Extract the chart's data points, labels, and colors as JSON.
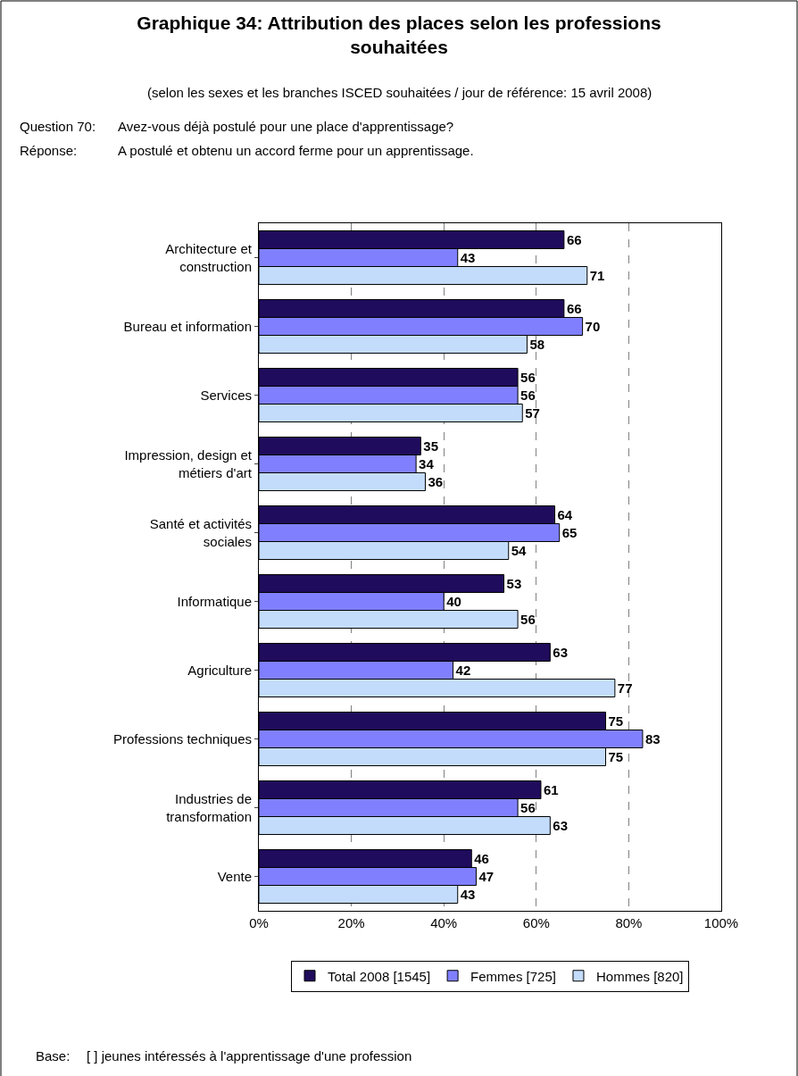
{
  "chart_data": {
    "type": "bar",
    "orientation": "horizontal",
    "title": "Graphique 34: Attribution des places selon les professions souhaitées",
    "subtitle": "(selon les sexes et les branches ISCED souhaitées / jour de référence: 15 avril 2008)",
    "annotations": [
      "Question 70:",
      "Avez-vous déjà postulé pour une place d'apprentissage?",
      "Réponse:",
      "A postulé et obtenu un accord ferme pour un apprentissage.",
      "Base:",
      "[ ] jeunes intéressés à l'apprentissage d'une profession"
    ],
    "categories": [
      "Architecture et construction",
      "Bureau et information",
      "Services",
      "Impression, design et métiers d'art",
      "Santé et activités sociales",
      "Informatique",
      "Agriculture",
      "Professions techniques",
      "Industries de transformation",
      "Vente"
    ],
    "series": [
      {
        "name": "Total 2008 [1545]",
        "color": "#200c5c",
        "values": [
          66,
          66,
          56,
          35,
          64,
          53,
          63,
          75,
          61,
          46
        ]
      },
      {
        "name": "Femmes [725]",
        "color": "#8080ff",
        "values": [
          43,
          70,
          56,
          34,
          65,
          40,
          42,
          83,
          56,
          47
        ]
      },
      {
        "name": "Hommes [820]",
        "color": "#c4dcfc",
        "values": [
          71,
          58,
          57,
          36,
          54,
          56,
          77,
          75,
          63,
          43
        ]
      }
    ],
    "xlim": [
      0,
      100
    ],
    "xticks": [
      {
        "value": 0,
        "label": "0%"
      },
      {
        "value": 20,
        "label": "20%"
      },
      {
        "value": 40,
        "label": "40%"
      },
      {
        "value": 60,
        "label": "60%"
      },
      {
        "value": 80,
        "label": "80%"
      },
      {
        "value": 100,
        "label": "100%"
      }
    ],
    "grid": "x",
    "legend": "bottom",
    "data_labels": true
  }
}
